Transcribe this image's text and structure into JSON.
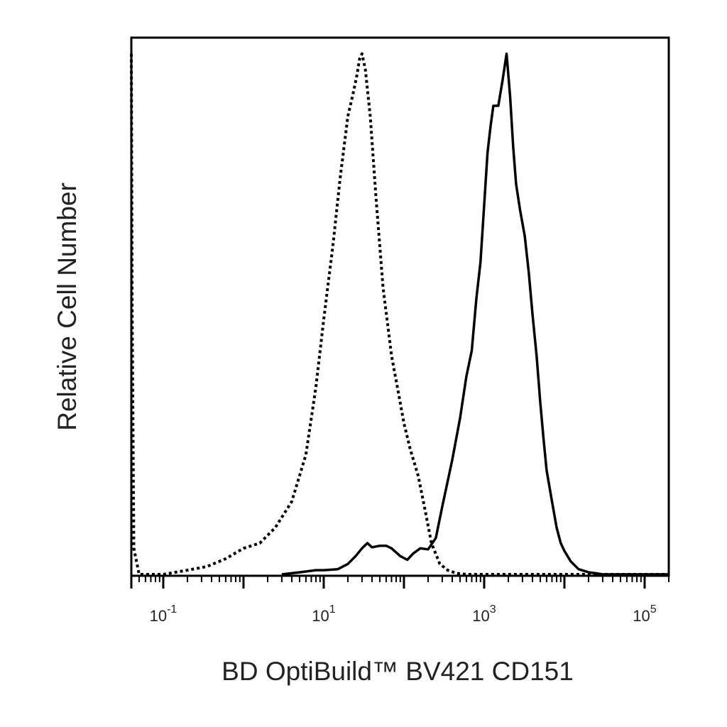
{
  "chart_data": {
    "type": "line",
    "xlabel": "BD OptiBuild™ BV421 CD151",
    "ylabel": "Relative Cell Number",
    "x_scale": "log",
    "xlim": [
      0.04,
      200000
    ],
    "ylim": [
      0,
      1.02
    ],
    "grid": false,
    "x_tick_labels": [
      {
        "value": 0.1,
        "base": "10",
        "exp": "-1"
      },
      {
        "value": 10,
        "base": "10",
        "exp": "1"
      },
      {
        "value": 1000,
        "base": "10",
        "exp": "3"
      },
      {
        "value": 100000,
        "base": "10",
        "exp": "5"
      }
    ],
    "x_major_ticks": [
      0.1,
      1,
      10,
      100,
      1000,
      10000,
      100000
    ],
    "series": [
      {
        "style": "dotted",
        "x": [
          0.04,
          0.041,
          0.043,
          0.05,
          0.07,
          0.1,
          0.2,
          0.35,
          0.6,
          1.0,
          1.6,
          2.5,
          4,
          6,
          8,
          10,
          13,
          16,
          20,
          23,
          26,
          28,
          30,
          33,
          38,
          45,
          55,
          70,
          85,
          100,
          120,
          150,
          180,
          220,
          280,
          350,
          450,
          600,
          1000,
          3000,
          10000,
          50000,
          200000
        ],
        "y": [
          1.0,
          0.5,
          0.05,
          0.0,
          0.0,
          0.0,
          0.008,
          0.015,
          0.03,
          0.05,
          0.06,
          0.09,
          0.14,
          0.23,
          0.36,
          0.49,
          0.63,
          0.76,
          0.88,
          0.92,
          0.96,
          0.99,
          1.0,
          0.97,
          0.88,
          0.72,
          0.55,
          0.42,
          0.35,
          0.29,
          0.24,
          0.19,
          0.13,
          0.06,
          0.02,
          0.008,
          0.002,
          0.0,
          0.0,
          0.0,
          0.0,
          0.0,
          0.0
        ]
      },
      {
        "style": "solid",
        "x": [
          3,
          5,
          8,
          10,
          15,
          20,
          25,
          30,
          35,
          40,
          50,
          60,
          70,
          90,
          110,
          130,
          160,
          200,
          250,
          300,
          400,
          500,
          600,
          700,
          800,
          900,
          1000,
          1100,
          1200,
          1300,
          1500,
          1700,
          1900,
          2100,
          2300,
          2500,
          2800,
          3200,
          3600,
          4000,
          4500,
          5000,
          5500,
          6000,
          7000,
          8000,
          9000,
          10000,
          12000,
          15000,
          20000,
          25000,
          30000,
          35000,
          50000,
          100000,
          200000
        ],
        "y": [
          0.0,
          0.004,
          0.008,
          0.008,
          0.01,
          0.02,
          0.035,
          0.05,
          0.06,
          0.052,
          0.055,
          0.055,
          0.05,
          0.035,
          0.028,
          0.04,
          0.05,
          0.048,
          0.07,
          0.13,
          0.22,
          0.3,
          0.38,
          0.43,
          0.53,
          0.6,
          0.71,
          0.81,
          0.86,
          0.9,
          0.9,
          0.95,
          1.0,
          0.92,
          0.82,
          0.75,
          0.7,
          0.65,
          0.58,
          0.5,
          0.42,
          0.33,
          0.26,
          0.2,
          0.14,
          0.09,
          0.06,
          0.045,
          0.025,
          0.01,
          0.004,
          0.002,
          0.0,
          0.0,
          0.0,
          0.0,
          0.0
        ]
      }
    ]
  }
}
